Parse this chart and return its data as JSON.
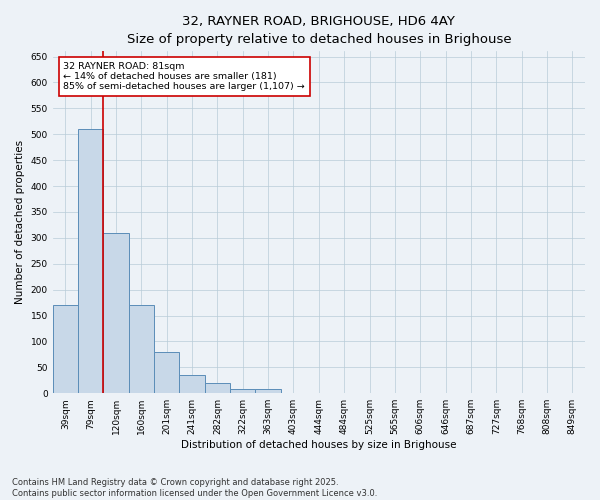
{
  "title": "32, RAYNER ROAD, BRIGHOUSE, HD6 4AY",
  "subtitle": "Size of property relative to detached houses in Brighouse",
  "xlabel": "Distribution of detached houses by size in Brighouse",
  "ylabel": "Number of detached properties",
  "categories": [
    "39sqm",
    "79sqm",
    "120sqm",
    "160sqm",
    "201sqm",
    "241sqm",
    "282sqm",
    "322sqm",
    "363sqm",
    "403sqm",
    "444sqm",
    "484sqm",
    "525sqm",
    "565sqm",
    "606sqm",
    "646sqm",
    "687sqm",
    "727sqm",
    "768sqm",
    "808sqm",
    "849sqm"
  ],
  "values": [
    170,
    510,
    310,
    170,
    80,
    35,
    20,
    8,
    8,
    0,
    0,
    0,
    0,
    0,
    0,
    0,
    0,
    0,
    0,
    0,
    0
  ],
  "bar_color": "#c8d8e8",
  "bar_edge_color": "#5b8db8",
  "vline_x": 1.5,
  "vline_color": "#cc0000",
  "annotation_text": "32 RAYNER ROAD: 81sqm\n← 14% of detached houses are smaller (181)\n85% of semi-detached houses are larger (1,107) →",
  "annotation_box_color": "#ffffff",
  "annotation_box_edge": "#cc0000",
  "ylim": [
    0,
    660
  ],
  "yticks": [
    0,
    50,
    100,
    150,
    200,
    250,
    300,
    350,
    400,
    450,
    500,
    550,
    600,
    650
  ],
  "footer_line1": "Contains HM Land Registry data © Crown copyright and database right 2025.",
  "footer_line2": "Contains public sector information licensed under the Open Government Licence v3.0.",
  "bg_color": "#edf2f7",
  "title_fontsize": 9.5,
  "subtitle_fontsize": 8.5,
  "axis_fontsize": 7.5,
  "tick_fontsize": 6.5,
  "annotation_fontsize": 6.8,
  "footer_fontsize": 6.0
}
